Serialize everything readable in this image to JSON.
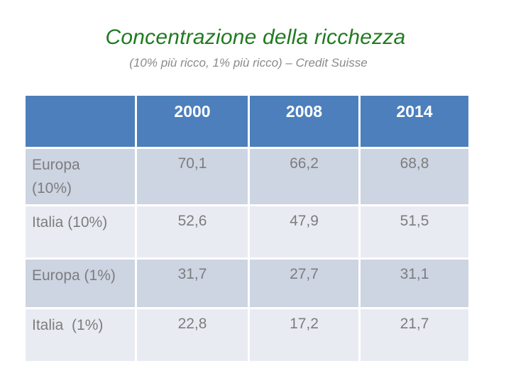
{
  "slide": {
    "title": "Concentrazione della ricchezza",
    "subtitle": "(10% più ricco, 1% più ricco) – Credit Suisse"
  },
  "table": {
    "columns": [
      "",
      "2000",
      "2008",
      "2014"
    ],
    "rows": [
      {
        "label": "Europa\n(10%)",
        "values": [
          "70,1",
          "66,2",
          "68,8"
        ]
      },
      {
        "label": "Italia (10%)",
        "values": [
          "52,6",
          "47,9",
          "51,5"
        ]
      },
      {
        "label": "Europa (1%)",
        "values": [
          "31,7",
          "27,7",
          "31,1"
        ]
      },
      {
        "label": "Italia  (1%)",
        "values": [
          "22,8",
          "17,2",
          "21,7"
        ]
      }
    ]
  },
  "chart_data": {
    "type": "table",
    "title": "Concentrazione della ricchezza",
    "subtitle": "(10% più ricco, 1% più ricco) – Credit Suisse",
    "categories": [
      "2000",
      "2008",
      "2014"
    ],
    "series": [
      {
        "name": "Europa (10%)",
        "values": [
          70.1,
          66.2,
          68.8
        ]
      },
      {
        "name": "Italia (10%)",
        "values": [
          52.6,
          47.9,
          51.5
        ]
      },
      {
        "name": "Europa (1%)",
        "values": [
          31.7,
          27.7,
          31.1
        ]
      },
      {
        "name": "Italia (1%)",
        "values": [
          22.8,
          17.2,
          21.7
        ]
      }
    ]
  },
  "colors": {
    "title_green": "#217a21",
    "subtitle_gray": "#8a8a8a",
    "header_blue": "#4c7fbc",
    "band_dark": "#cdd4e2",
    "band_light": "#e8ebf2",
    "table_text_gray": "#7d7d7d",
    "background": "#ffffff"
  }
}
